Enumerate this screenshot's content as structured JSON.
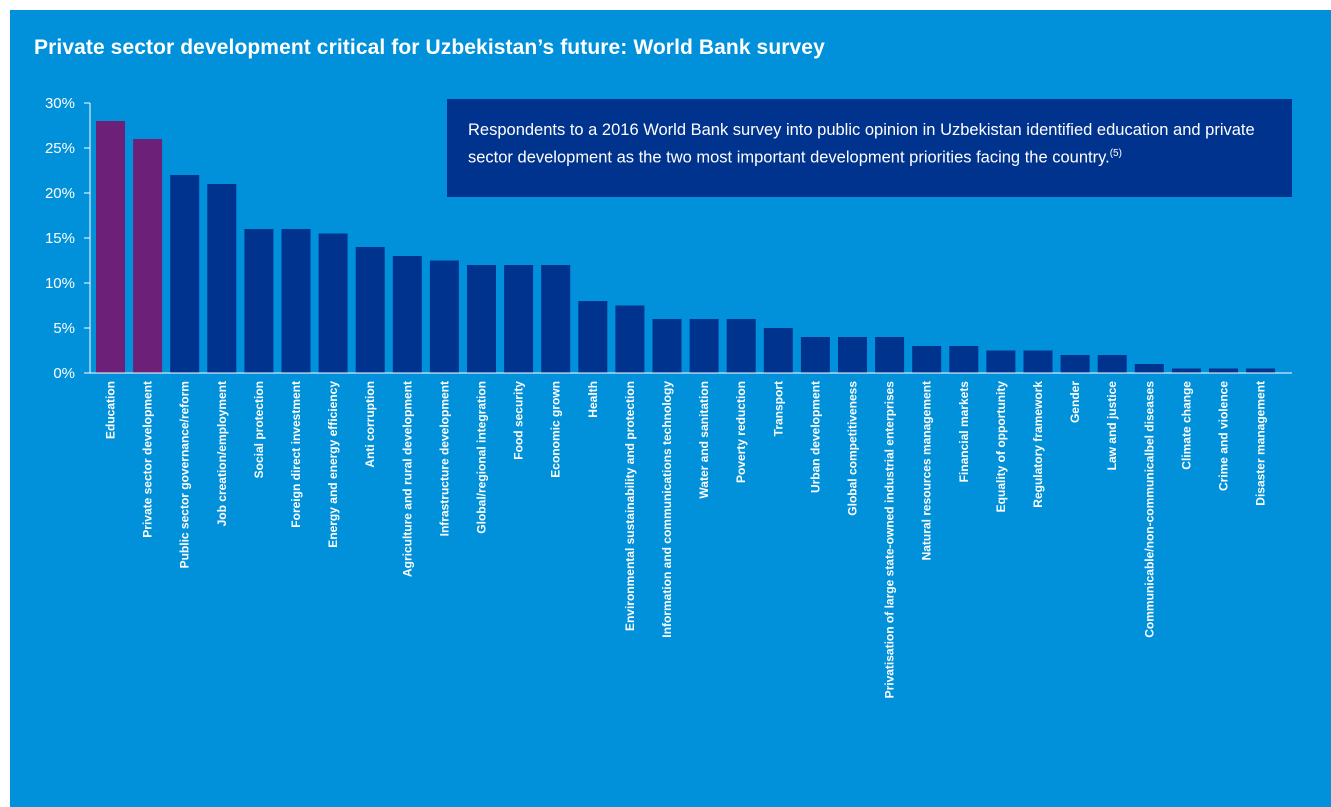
{
  "title": "Private sector development critical for Uzbekistan’s future: World Bank survey",
  "note": {
    "text": "Respondents to a 2016 World Bank survey into public opinion in Uzbekistan identified education and private sector development as the two most important development priorities facing the country.",
    "footnote": "(5)"
  },
  "colors": {
    "background": "#0091da",
    "note_box": "#00338d",
    "highlight_bar": "#6d2077",
    "bar": "#00338d",
    "text": "#ffffff"
  },
  "chart_data": {
    "type": "bar",
    "title": "Private sector development critical for Uzbekistan’s future: World Bank survey",
    "xlabel": "",
    "ylabel": "",
    "ylim": [
      0,
      30
    ],
    "y_ticks": [
      0,
      5,
      10,
      15,
      20,
      25,
      30
    ],
    "y_tick_format": "percent",
    "grid": false,
    "categories": [
      "Education",
      "Private sector development",
      "Public sector governance/reform",
      "Job creation/employment",
      "Social protection",
      "Foreign direct investment",
      "Energy and energy efficiency",
      "Anti corruption",
      "Agriculture and rural development",
      "Infrastructure development",
      "Global/regional integration",
      "Food security",
      "Economic grown",
      "Health",
      "Environmental sustainability and protection",
      "Information and communications technology",
      "Water and sanitation",
      "Poverty reduction",
      "Transport",
      "Urban development",
      "Global competitiveness",
      "Privatisation of large state-owned industrial enterprises",
      "Natural resources management",
      "Financial markets",
      "Equality of opportunity",
      "Regulatory framework",
      "Gender",
      "Law and justice",
      "Communicable/non-communicalbel diseases",
      "Climate change",
      "Crime and violence",
      "Disaster management"
    ],
    "values": [
      28,
      26,
      22,
      21,
      16,
      16,
      15.5,
      14,
      13,
      12.5,
      12,
      12,
      12,
      8,
      7.5,
      6,
      6,
      6,
      5,
      4,
      4,
      4,
      3,
      3,
      2.5,
      2.5,
      2,
      2,
      1,
      0.5,
      0.5,
      0.5
    ],
    "highlighted": [
      "Education",
      "Private sector development"
    ]
  }
}
